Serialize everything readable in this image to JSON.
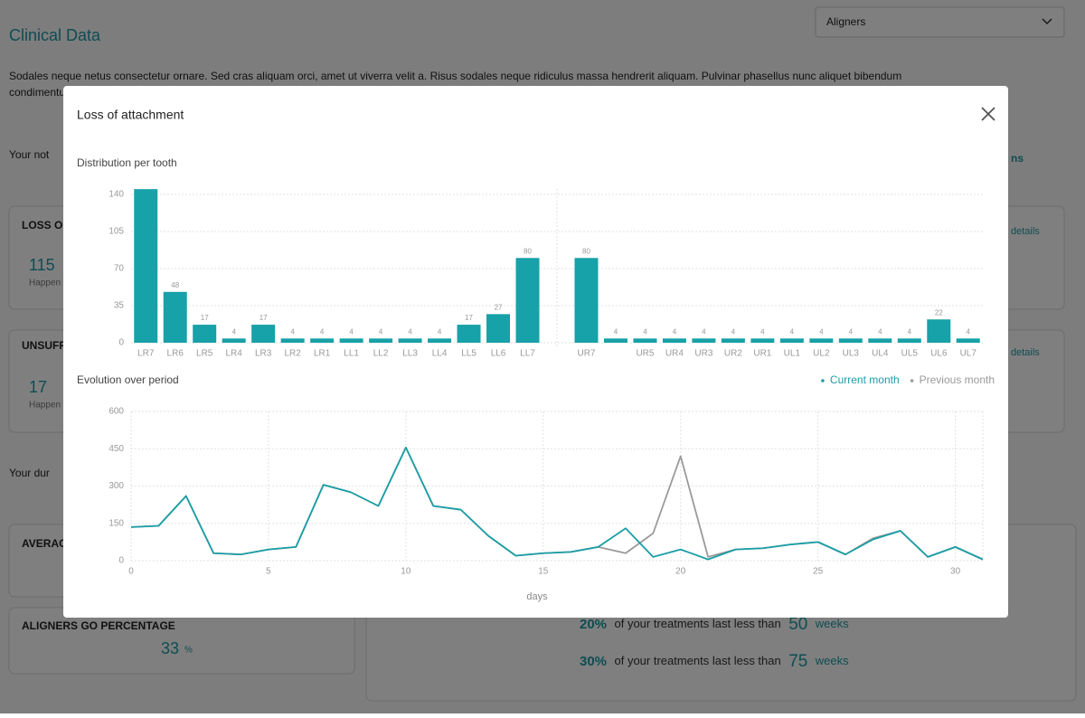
{
  "page": {
    "title": "Clinical Data",
    "dropdown": "Aligners",
    "paragraph": [
      "Sodales neque netus consectetur ornare. Sed cras aliquam orci, amet ut viverra velit a. Risus sodales neque ridiculus massa hendrerit aliquam. Pulvinar phasellus nunc aliquet bibendum",
      "condimentum"
    ],
    "section_1": "Your not",
    "section_2": "Your dur",
    "side_link": "ns",
    "cards": [
      {
        "title": "LOSS OF",
        "value": "115",
        "caption": "Happen",
        "link": "details"
      },
      {
        "title": "UNSUFF",
        "value": "17",
        "caption": "Happen",
        "link": "details"
      },
      {
        "title": "AVERAG"
      },
      {
        "title": "ALIGNERS GO PERCENTAGE",
        "value": "33",
        "unit": "%"
      }
    ],
    "durations": [
      [
        "20%",
        "of your treatments last less than",
        "50",
        "weeks"
      ],
      [
        "30%",
        "of your treatments last less than",
        "75",
        "weeks"
      ]
    ]
  },
  "modal": {
    "title": "Loss of attachment"
  },
  "chart_data": [
    {
      "type": "bar",
      "title": "Distribution per tooth",
      "color": "#17a1a8",
      "grid": true,
      "categories": [
        "LR7",
        "LR6",
        "LR5",
        "LR4",
        "LR3",
        "LR2",
        "LR1",
        "LL1",
        "LL2",
        "LL3",
        "LL4",
        "LL5",
        "LL6",
        "LL7",
        null,
        "UR7",
        null,
        "UR5",
        "UR4",
        "UR3",
        "UR2",
        "UR1",
        "UL1",
        "UL2",
        "UL3",
        "UL4",
        "UL5",
        "UL6",
        "UL7"
      ],
      "values": [
        145,
        48,
        17,
        4,
        17,
        4,
        4,
        4,
        4,
        4,
        4,
        17,
        27,
        80,
        null,
        80,
        4,
        4,
        4,
        4,
        4,
        4,
        4,
        4,
        4,
        4,
        4,
        22,
        4
      ],
      "ylim": [
        0,
        140
      ],
      "yticks": [
        0,
        35,
        70,
        105,
        140
      ]
    },
    {
      "type": "line",
      "title": "Evolution over period",
      "xlabel": "days",
      "grid": true,
      "legend": "top-right",
      "x": [
        0,
        1,
        2,
        3,
        4,
        5,
        6,
        7,
        8,
        9,
        10,
        11,
        12,
        13,
        14,
        15,
        16,
        17,
        18,
        19,
        20,
        21,
        22,
        23,
        24,
        25,
        26,
        27,
        28,
        29,
        30,
        31
      ],
      "series": [
        {
          "name": "Current month",
          "color": "#1a9ea6",
          "values": [
            135,
            140,
            260,
            30,
            25,
            45,
            55,
            305,
            275,
            220,
            455,
            220,
            205,
            100,
            20,
            30,
            35,
            55,
            130,
            15,
            45,
            5,
            45,
            50,
            65,
            75,
            25,
            85,
            120,
            15,
            55,
            5
          ]
        },
        {
          "name": "Previous month",
          "color": "#9a9a9a",
          "values": [
            135,
            140,
            260,
            30,
            25,
            45,
            55,
            305,
            275,
            220,
            455,
            220,
            205,
            100,
            20,
            30,
            35,
            55,
            30,
            110,
            420,
            15,
            45,
            50,
            65,
            75,
            25,
            90,
            120,
            15,
            55,
            5
          ]
        }
      ],
      "xlim": [
        0,
        31
      ],
      "xticks": [
        0,
        5,
        10,
        15,
        20,
        25,
        30
      ],
      "ylim": [
        0,
        600
      ],
      "yticks": [
        0,
        150,
        300,
        450,
        600
      ]
    }
  ]
}
